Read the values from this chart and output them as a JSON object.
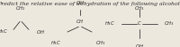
{
  "title": "Predict the relative ease of dehydration of the following alcohols",
  "title_fontsize": 4.5,
  "title_style": "italic",
  "bg_color": "#ede8de",
  "text_color": "#2a2a2a",
  "font_family": "serif",
  "lw": 0.55,
  "fs": 3.8
}
